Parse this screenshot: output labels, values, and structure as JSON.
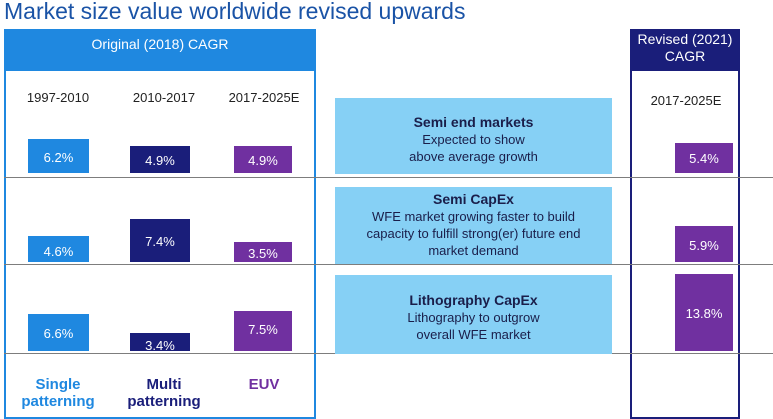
{
  "title": "Market size value worldwide revised upwards",
  "original": {
    "header": "Original (2018) CAGR",
    "columns": [
      "1997-2010",
      "2010-2017",
      "2017-2025E"
    ],
    "labels": [
      "Single patterning",
      "Multi patterning",
      "EUV"
    ],
    "rows": [
      [
        "6.2%",
        "4.9%",
        "4.9%"
      ],
      [
        "4.6%",
        "7.4%",
        "3.5%"
      ],
      [
        "6.6%",
        "3.4%",
        "7.5%"
      ]
    ]
  },
  "revised": {
    "header_line1": "Revised (2021)",
    "header_line2": "CAGR",
    "column": "2017-2025E",
    "values": [
      "5.4%",
      "5.9%",
      "13.8%"
    ]
  },
  "middle": [
    {
      "title": "Semi end markets",
      "lines": [
        "Expected to show",
        "above average growth"
      ]
    },
    {
      "title": "Semi CapEx",
      "lines": [
        "WFE market growing faster to build",
        "capacity to fulfill strong(er) future end",
        "market demand"
      ]
    },
    {
      "title": "Lithography CapEx",
      "lines": [
        "Lithography to outgrow",
        "overall WFE market"
      ]
    }
  ],
  "colors": {
    "single": "#1f88e0",
    "multi": "#1a1e7a",
    "euv": "#7030a0",
    "middle_box": "#86d0f5",
    "title": "#1a53a6"
  }
}
